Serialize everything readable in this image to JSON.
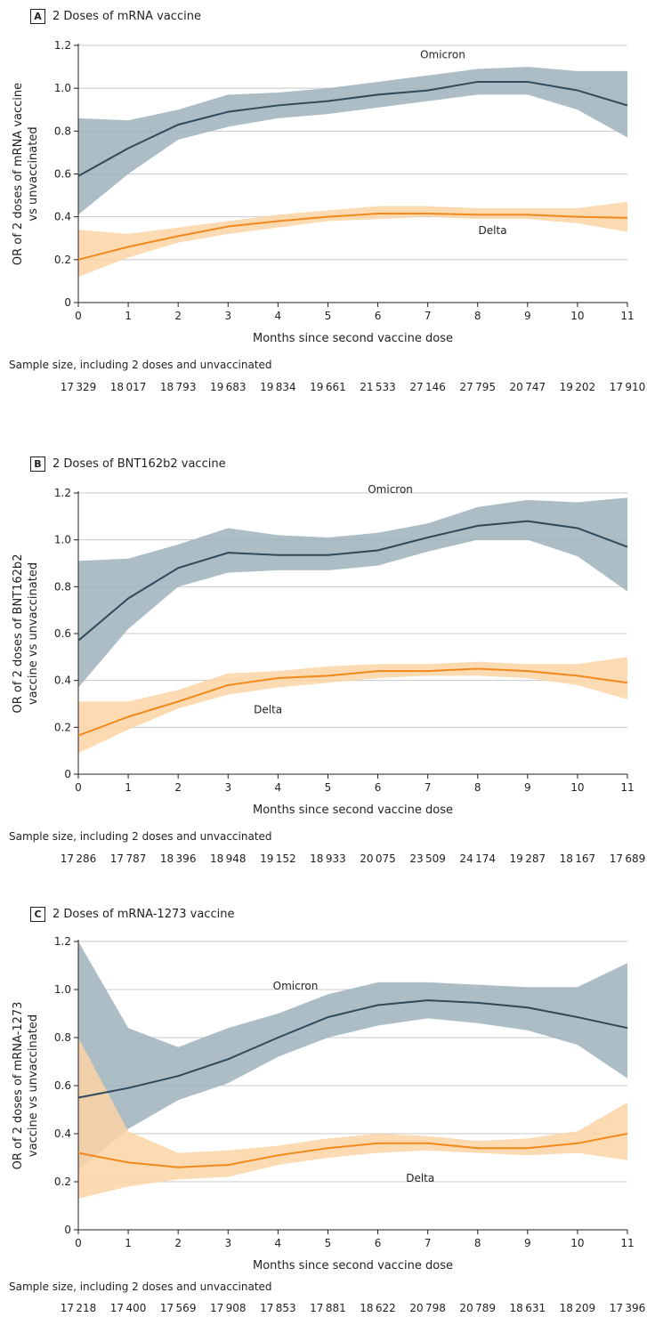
{
  "chart_data": [
    {
      "type": "line",
      "panel_letter": "A",
      "title": "2 Doses of mRNA vaccine",
      "xlabel": "Months since second vaccine dose",
      "ylabel": [
        "OR of 2 doses of mRNA vaccine",
        "vs unvaccinated"
      ],
      "x": [
        0,
        1,
        2,
        3,
        4,
        5,
        6,
        7,
        8,
        9,
        10,
        11
      ],
      "xlim": [
        0,
        11
      ],
      "ylim": [
        0,
        1.2
      ],
      "yticks": [
        "0",
        "0.2",
        "0.4",
        "0.6",
        "0.8",
        "1.0",
        "1.2"
      ],
      "grid": true,
      "series": [
        {
          "name": "Omicron",
          "color": "#2f4a5a",
          "band_color": "#9fb1bb",
          "values": [
            0.59,
            0.72,
            0.83,
            0.89,
            0.92,
            0.94,
            0.97,
            0.99,
            1.03,
            1.03,
            0.99,
            0.92
          ],
          "lower": [
            0.41,
            0.6,
            0.76,
            0.82,
            0.86,
            0.88,
            0.91,
            0.94,
            0.97,
            0.97,
            0.9,
            0.77
          ],
          "upper": [
            0.86,
            0.85,
            0.9,
            0.97,
            0.98,
            1.0,
            1.03,
            1.06,
            1.09,
            1.1,
            1.08,
            1.08
          ]
        },
        {
          "name": "Delta",
          "color": "#f08a1e",
          "band_color": "#fbd3a5",
          "values": [
            0.2,
            0.26,
            0.31,
            0.355,
            0.38,
            0.4,
            0.415,
            0.415,
            0.41,
            0.41,
            0.4,
            0.395
          ],
          "lower": [
            0.12,
            0.21,
            0.28,
            0.32,
            0.35,
            0.38,
            0.39,
            0.4,
            0.39,
            0.39,
            0.37,
            0.33
          ],
          "upper": [
            0.34,
            0.32,
            0.35,
            0.38,
            0.41,
            0.43,
            0.45,
            0.45,
            0.44,
            0.44,
            0.44,
            0.47
          ]
        }
      ],
      "annotations": [
        {
          "text": "Omicron",
          "x": 7.3,
          "y": 1.14
        },
        {
          "text": "Delta",
          "x": 8.3,
          "y": 0.32
        }
      ],
      "sample_size_label": "Sample size, including 2 doses and unvaccinated",
      "sample_sizes": [
        "17329",
        "18017",
        "18793",
        "19683",
        "19834",
        "19661",
        "21533",
        "27146",
        "27795",
        "20747",
        "19202",
        "17910"
      ]
    },
    {
      "type": "line",
      "panel_letter": "B",
      "title": "2 Doses of BNT162b2 vaccine",
      "xlabel": "Months since second vaccine dose",
      "ylabel": [
        "OR of 2 doses of BNT162b2",
        "vaccine vs unvaccinated"
      ],
      "x": [
        0,
        1,
        2,
        3,
        4,
        5,
        6,
        7,
        8,
        9,
        10,
        11
      ],
      "xlim": [
        0,
        11
      ],
      "ylim": [
        0,
        1.2
      ],
      "yticks": [
        "0",
        "0.2",
        "0.4",
        "0.6",
        "0.8",
        "1.0",
        "1.2"
      ],
      "grid": true,
      "series": [
        {
          "name": "Omicron",
          "color": "#2f4a5a",
          "band_color": "#9fb1bb",
          "values": [
            0.57,
            0.75,
            0.88,
            0.945,
            0.935,
            0.935,
            0.955,
            1.01,
            1.06,
            1.08,
            1.05,
            0.97
          ],
          "lower": [
            0.37,
            0.62,
            0.8,
            0.86,
            0.87,
            0.87,
            0.89,
            0.95,
            1.0,
            1.0,
            0.93,
            0.78
          ],
          "upper": [
            0.91,
            0.92,
            0.98,
            1.05,
            1.02,
            1.01,
            1.03,
            1.07,
            1.14,
            1.17,
            1.16,
            1.18
          ]
        },
        {
          "name": "Delta",
          "color": "#f08a1e",
          "band_color": "#fbd3a5",
          "values": [
            0.165,
            0.245,
            0.31,
            0.38,
            0.41,
            0.42,
            0.44,
            0.44,
            0.45,
            0.44,
            0.42,
            0.39
          ],
          "lower": [
            0.09,
            0.19,
            0.28,
            0.34,
            0.37,
            0.39,
            0.41,
            0.42,
            0.42,
            0.41,
            0.38,
            0.32
          ],
          "upper": [
            0.31,
            0.31,
            0.36,
            0.43,
            0.44,
            0.46,
            0.47,
            0.47,
            0.48,
            0.47,
            0.47,
            0.5
          ]
        }
      ],
      "annotations": [
        {
          "text": "Omicron",
          "x": 6.25,
          "y": 1.2
        },
        {
          "text": "Delta",
          "x": 3.8,
          "y": 0.26
        }
      ],
      "sample_size_label": "Sample size, including 2 doses and unvaccinated",
      "sample_sizes": [
        "17286",
        "17787",
        "18396",
        "18948",
        "19152",
        "18933",
        "20075",
        "23509",
        "24174",
        "19287",
        "18167",
        "17689"
      ]
    },
    {
      "type": "line",
      "panel_letter": "C",
      "title": "2 Doses of mRNA-1273 vaccine",
      "xlabel": "Months since second vaccine dose",
      "ylabel": [
        "OR of 2 doses of mRNA-1273",
        "vaccine vs unvaccinated"
      ],
      "x": [
        0,
        1,
        2,
        3,
        4,
        5,
        6,
        7,
        8,
        9,
        10,
        11
      ],
      "xlim": [
        0,
        11
      ],
      "ylim": [
        0,
        1.2
      ],
      "yticks": [
        "0",
        "0.2",
        "0.4",
        "0.6",
        "0.8",
        "1.0",
        "1.2"
      ],
      "grid": true,
      "series": [
        {
          "name": "Omicron",
          "color": "#2f4a5a",
          "band_color": "#9fb1bb",
          "values": [
            0.55,
            0.59,
            0.64,
            0.71,
            0.8,
            0.885,
            0.935,
            0.955,
            0.945,
            0.925,
            0.885,
            0.84
          ],
          "lower": [
            0.25,
            0.42,
            0.54,
            0.61,
            0.72,
            0.8,
            0.85,
            0.88,
            0.86,
            0.83,
            0.77,
            0.63
          ],
          "upper": [
            1.2,
            0.84,
            0.76,
            0.84,
            0.9,
            0.98,
            1.03,
            1.03,
            1.02,
            1.01,
            1.01,
            1.11
          ]
        },
        {
          "name": "Delta",
          "color": "#f08a1e",
          "band_color": "#fbd3a5",
          "values": [
            0.32,
            0.28,
            0.26,
            0.27,
            0.31,
            0.34,
            0.36,
            0.36,
            0.34,
            0.34,
            0.36,
            0.4
          ],
          "lower": [
            0.13,
            0.18,
            0.21,
            0.22,
            0.27,
            0.3,
            0.32,
            0.33,
            0.32,
            0.31,
            0.32,
            0.29
          ],
          "upper": [
            0.8,
            0.41,
            0.32,
            0.33,
            0.35,
            0.38,
            0.4,
            0.39,
            0.37,
            0.38,
            0.41,
            0.53
          ]
        }
      ],
      "annotations": [
        {
          "text": "Omicron",
          "x": 4.35,
          "y": 1.0
        },
        {
          "text": "Delta",
          "x": 6.85,
          "y": 0.2
        }
      ],
      "sample_size_label": "Sample size, including 2 doses and unvaccinated",
      "sample_sizes": [
        "17218",
        "17400",
        "17569",
        "17908",
        "17853",
        "17881",
        "18622",
        "20798",
        "20789",
        "18631",
        "18209",
        "17396"
      ]
    }
  ]
}
